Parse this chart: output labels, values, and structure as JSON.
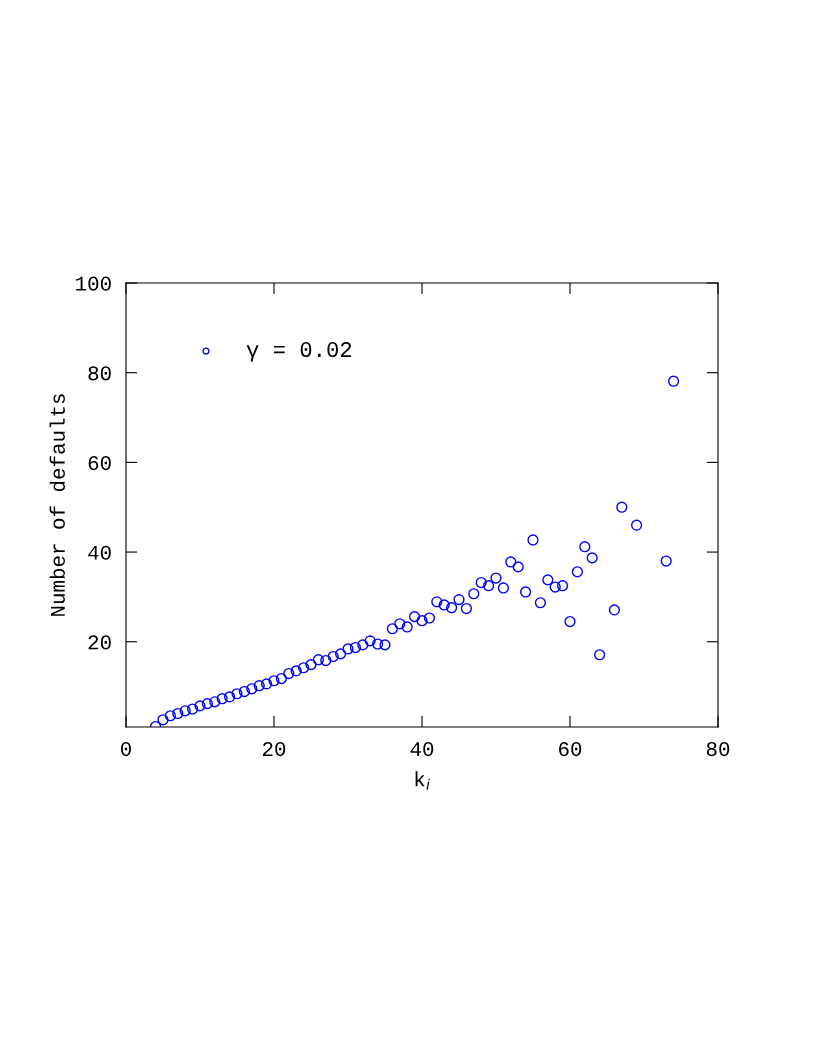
{
  "chart_data": {
    "type": "scatter",
    "xlabel": "k$_{i}$",
    "ylabel": "Number of defaults",
    "x": [
      4,
      5,
      6,
      7,
      8,
      9,
      10,
      11,
      12,
      13,
      14,
      15,
      16,
      17,
      18,
      19,
      20,
      21,
      22,
      23,
      24,
      25,
      26,
      27,
      28,
      29,
      30,
      31,
      32,
      33,
      34,
      35,
      36,
      37,
      38,
      39,
      40,
      41,
      42,
      43,
      44,
      45,
      46,
      47,
      48,
      49,
      50,
      51,
      52,
      53,
      54,
      55,
      56,
      57,
      58,
      59,
      60,
      61,
      62,
      63,
      64,
      66,
      67,
      69,
      73,
      74
    ],
    "series": [
      {
        "name": "γ = 0.02",
        "color": "#0000ff",
        "values": [
          1.1,
          2.6,
          3.5,
          4,
          4.6,
          5,
          5.7,
          6.2,
          6.6,
          7.3,
          7.7,
          8.4,
          8.9,
          9.5,
          10.2,
          10.6,
          11.3,
          11.8,
          12.9,
          13.5,
          14.2,
          14.9,
          16,
          15.8,
          16.7,
          17.3,
          18.4,
          18.7,
          19.3,
          20.2,
          19.5,
          19.3,
          22.9,
          24,
          23.3,
          25.6,
          24.7,
          25.3,
          28.9,
          28.2,
          27.6,
          29.4,
          27.4,
          30.7,
          33.2,
          32.5,
          34.2,
          32,
          37.8,
          36.7,
          31.1,
          42.7,
          28.7,
          33.8,
          32.2,
          32.5,
          24.5,
          35.6,
          41.2,
          38.7,
          17.1,
          27.1,
          50,
          46,
          38,
          78.1
        ]
      }
    ],
    "xlim": [
      0,
      80
    ],
    "xticks": [
      0,
      20,
      40,
      60,
      80
    ],
    "ylim": [
      1,
      100
    ],
    "yticks": [
      20,
      40,
      60,
      80,
      100
    ],
    "marker": "circle",
    "legend": "top left",
    "grid": false
  }
}
